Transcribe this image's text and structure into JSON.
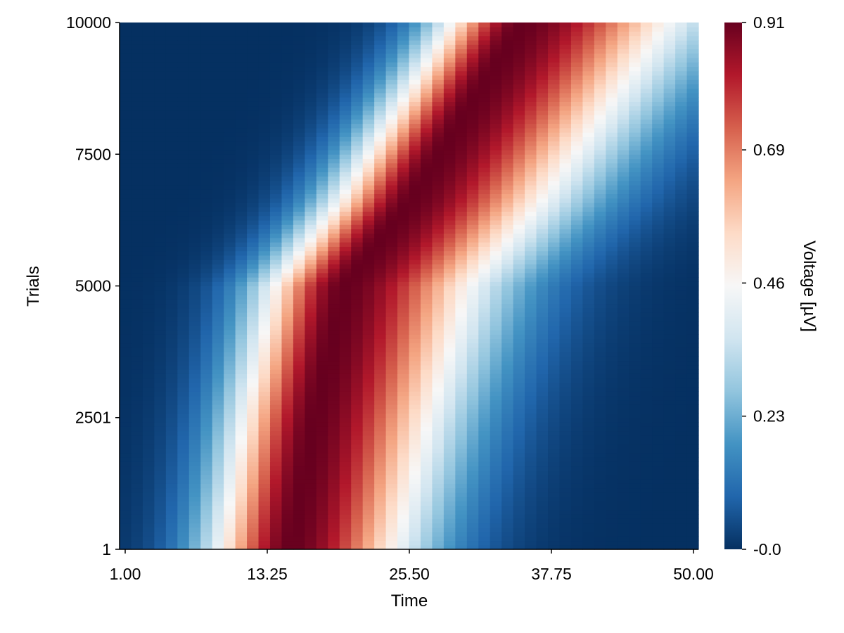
{
  "chart_data": {
    "type": "heatmap",
    "title": "",
    "xlabel": "Time",
    "ylabel": "Trials",
    "x_ticks": [
      1.0,
      13.25,
      25.5,
      37.75,
      50.0
    ],
    "x_tick_labels": [
      "1.00",
      "13.25",
      "25.50",
      "37.75",
      "50.00"
    ],
    "y_ticks": [
      1,
      2501,
      5000,
      7500,
      10000
    ],
    "y_tick_labels": [
      "1",
      "2501",
      "5000",
      "7500",
      "10000"
    ],
    "xlim": [
      1,
      50
    ],
    "ylim": [
      1,
      10000
    ],
    "colorbar": {
      "label": "Voltage [µV]",
      "colormap": "RdBu_reversed",
      "range": [
        0.0,
        0.91
      ],
      "ticks": [
        0.0,
        0.23,
        0.46,
        0.69,
        0.91
      ],
      "tick_labels": [
        "-0.0",
        "0.23",
        "0.46",
        "0.69",
        "0.91"
      ]
    },
    "grid": false,
    "description_of_values": "Voltage over time per trial; a traveling peak whose latency increases with trial index",
    "peak_latency_by_trial": [
      {
        "trial": 1,
        "peak_time": 15.5
      },
      {
        "trial": 2501,
        "peak_time": 17.5
      },
      {
        "trial": 5000,
        "peak_time": 20.0
      },
      {
        "trial": 6600,
        "peak_time": 25.5
      },
      {
        "trial": 7500,
        "peak_time": 28.0
      },
      {
        "trial": 10000,
        "peak_time": 35.0
      }
    ],
    "peak_value": 0.91
  }
}
